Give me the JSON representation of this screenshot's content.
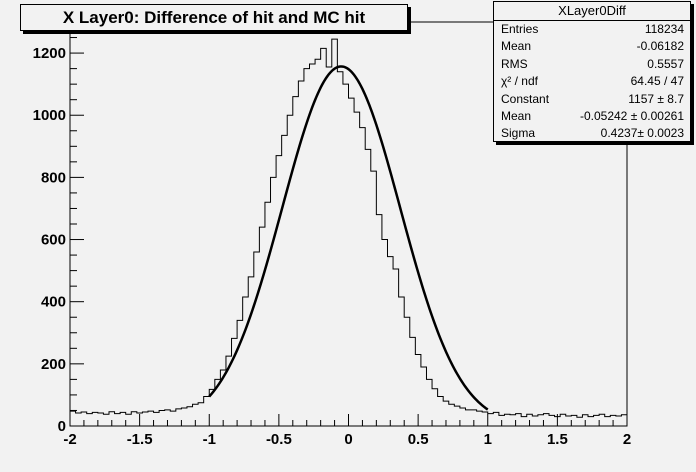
{
  "title": "X Layer0: Difference of hit and MC hit",
  "stats": {
    "name": "XLayer0Diff",
    "rows": [
      {
        "label": "Entries",
        "value": "118234"
      },
      {
        "label": "Mean",
        "value": "-0.06182"
      },
      {
        "label": "RMS",
        "value": "0.5557"
      },
      {
        "label": "χ² / ndf",
        "value": "64.45 / 47"
      },
      {
        "label": "Constant",
        "value": "1157 ± 8.7"
      },
      {
        "label": "Mean",
        "value": "-0.05242 ± 0.00261"
      },
      {
        "label": "Sigma",
        "value": "0.4237± 0.0023"
      }
    ]
  },
  "chart_data": {
    "type": "histogram",
    "title": "X Layer0: Difference of hit and MC hit",
    "xlabel": "",
    "ylabel": "",
    "xlim": [
      -2,
      2
    ],
    "ylim": [
      0,
      1300
    ],
    "x_ticks": [
      "-2",
      "-1.5",
      "-1",
      "-0.5",
      "0",
      "0.5",
      "1",
      "1.5",
      "2"
    ],
    "y_ticks": [
      "0",
      "200",
      "400",
      "600",
      "800",
      "1000",
      "1200"
    ],
    "bins": 100,
    "bin_width": 0.04,
    "series": [
      {
        "type": "histogram",
        "values": [
          48,
          42,
          45,
          40,
          44,
          42,
          38,
          46,
          40,
          44,
          38,
          46,
          42,
          45,
          48,
          44,
          50,
          52,
          48,
          55,
          58,
          62,
          70,
          75,
          95,
          118,
          150,
          180,
          225,
          282,
          340,
          415,
          480,
          560,
          640,
          720,
          800,
          870,
          935,
          1000,
          1060,
          1110,
          1150,
          1165,
          1180,
          1215,
          1155,
          1245,
          1140,
          1100,
          1055,
          1010,
          960,
          890,
          820,
          680,
          600,
          545,
          505,
          415,
          350,
          285,
          230,
          190,
          150,
          120,
          95,
          80,
          70,
          64,
          58,
          52,
          52,
          48,
          45,
          40,
          44,
          34,
          38,
          36,
          40,
          30,
          38,
          32,
          36,
          40,
          34,
          30,
          38,
          32,
          34,
          28,
          36,
          30,
          34,
          38,
          30,
          34,
          32,
          36
        ]
      },
      {
        "type": "gaussian-fit",
        "constant": 1157,
        "mean": -0.05242,
        "sigma": 0.4237,
        "range": [
          -1,
          1
        ]
      }
    ],
    "grid": false,
    "legend": "top-right"
  }
}
